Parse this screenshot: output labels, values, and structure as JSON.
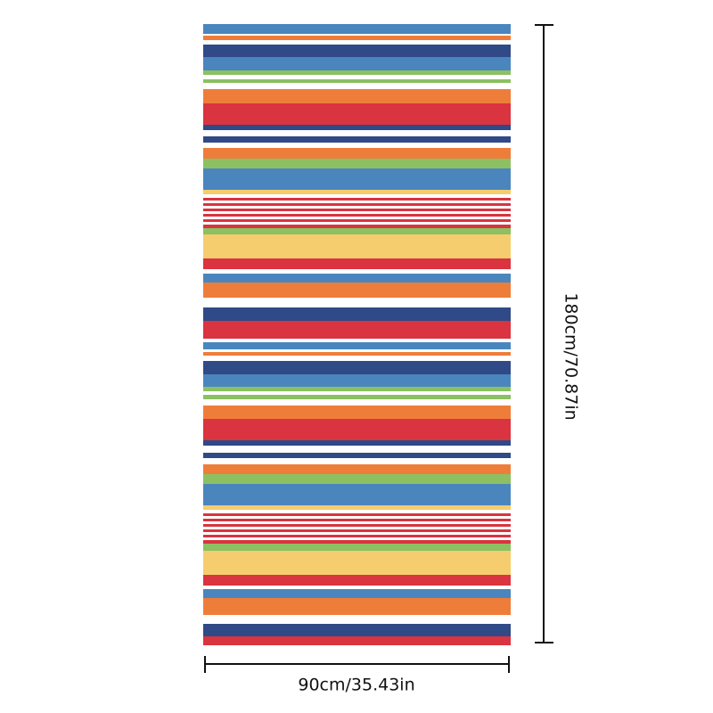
{
  "dimensions": {
    "width_label": "90cm/35.43in",
    "height_label": "180cm/70.87in"
  }
}
